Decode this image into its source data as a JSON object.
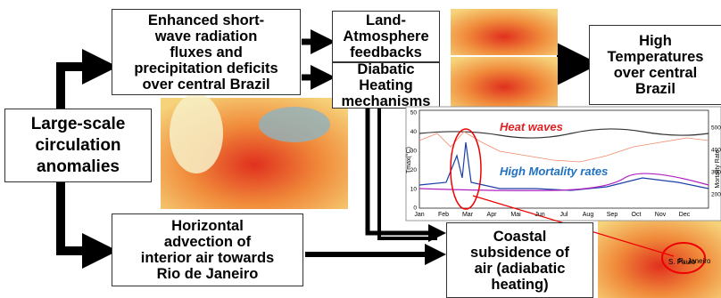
{
  "nodes": [
    {
      "lines": [
        "Enhanced short-",
        "wave radiation",
        "fluxes and",
        "precipitation deficits",
        "over central Brazil"
      ]
    },
    {
      "lines": [
        "Land-",
        "Atmosphere",
        "feedbacks"
      ]
    },
    {
      "lines": [
        "Diabatic",
        "Heating",
        "mechanisms"
      ]
    },
    {
      "lines": [
        "High",
        "Temperatures",
        "over central",
        "Brazil"
      ]
    },
    {
      "lines": [
        "Large-scale",
        "circulation",
        "anomalies"
      ]
    },
    {
      "lines": [
        "Horizontal",
        "advection of",
        "interior air towards",
        "Rio de Janeiro"
      ]
    },
    {
      "lines": [
        "Coastal",
        "subsidence of",
        "air (adiabatic",
        "heating)"
      ]
    }
  ],
  "inset_chart": {
    "annotations": [
      "Heat waves",
      "High Mortality rates"
    ],
    "y_label": "Tmax(°C)",
    "y2_label": "Mortality Rate",
    "yticks": [
      50,
      40,
      30,
      20,
      10,
      0
    ],
    "y2ticks": [
      500,
      400,
      300,
      200
    ],
    "months": [
      "Jan",
      "Feb",
      "Mar",
      "Apr",
      "Mai",
      "Jun",
      "Jul",
      "Aug",
      "Sep",
      "Oct",
      "Nov",
      "Dec"
    ]
  },
  "map_labels": [
    "S. Paulo",
    "R. Janeiro"
  ]
}
